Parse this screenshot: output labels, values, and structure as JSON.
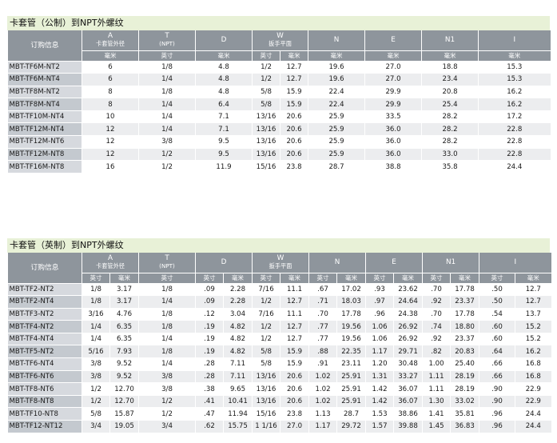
{
  "metric": {
    "title": "卡套管（公制）到NPT外螺纹",
    "header_top": [
      {
        "label": "订购信息",
        "sub": ""
      },
      {
        "label": "A",
        "sub": "卡套管外径"
      },
      {
        "label": "T",
        "sub": "(NPT)"
      },
      {
        "label": "D",
        "sub": ""
      },
      {
        "label": "W",
        "sub": "扳手平面"
      },
      {
        "label": "N",
        "sub": ""
      },
      {
        "label": "E",
        "sub": ""
      },
      {
        "label": "N1",
        "sub": ""
      },
      {
        "label": "I",
        "sub": ""
      }
    ],
    "header_units": [
      "毫米",
      "英寸",
      "毫米",
      "英寸",
      "毫米",
      "毫米",
      "毫米",
      "毫米",
      "毫米"
    ],
    "rows": [
      [
        "MBT-TF6M-NT2",
        "6",
        "1/8",
        "4.8",
        "1/2",
        "12.7",
        "19.6",
        "27.0",
        "18.8",
        "15.3"
      ],
      [
        "MBT-TF6M-NT4",
        "6",
        "1/4",
        "4.8",
        "1/2",
        "12.7",
        "19.6",
        "27.0",
        "23.4",
        "15.3"
      ],
      [
        "MBT-TF8M-NT2",
        "8",
        "1/8",
        "4.8",
        "5/8",
        "15.9",
        "22.4",
        "29.9",
        "20.8",
        "16.2"
      ],
      [
        "MBT-TF8M-NT4",
        "8",
        "1/4",
        "6.4",
        "5/8",
        "15.9",
        "22.4",
        "29.9",
        "25.4",
        "16.2"
      ],
      [
        "MBT-TF10M-NT4",
        "10",
        "1/4",
        "7.1",
        "13/16",
        "20.6",
        "25.9",
        "33.5",
        "28.2",
        "17.2"
      ],
      [
        "MBT-TF12M-NT4",
        "12",
        "1/4",
        "7.1",
        "13/16",
        "20.6",
        "25.9",
        "36.0",
        "28.2",
        "22.8"
      ],
      [
        "MBT-TF12M-NT6",
        "12",
        "3/8",
        "9.5",
        "13/16",
        "20.6",
        "25.9",
        "36.0",
        "28.2",
        "22.8"
      ],
      [
        "MBT-TF12M-NT8",
        "12",
        "1/2",
        "9.5",
        "13/16",
        "20.6",
        "25.9",
        "36.0",
        "33.0",
        "22.8"
      ],
      [
        "MBT-TF16M-NT8",
        "16",
        "1/2",
        "11.9",
        "15/16",
        "23.8",
        "28.7",
        "38.8",
        "35.8",
        "24.4"
      ]
    ]
  },
  "imperial": {
    "title": "卡套管（英制）到NPT外螺纹",
    "header_top": [
      {
        "label": "订购信息",
        "sub": ""
      },
      {
        "label": "A",
        "sub": "卡套管外径"
      },
      {
        "label": "T",
        "sub": "(NPT)"
      },
      {
        "label": "D",
        "sub": ""
      },
      {
        "label": "W",
        "sub": "扳手平面"
      },
      {
        "label": "N",
        "sub": ""
      },
      {
        "label": "E",
        "sub": ""
      },
      {
        "label": "N1",
        "sub": ""
      },
      {
        "label": "I",
        "sub": ""
      }
    ],
    "header_units": [
      "英寸",
      "毫米",
      "英寸",
      "英寸",
      "毫米",
      "英寸",
      "毫米",
      "英寸",
      "毫米",
      "英寸",
      "毫米",
      "英寸",
      "毫米",
      "英寸",
      "毫米"
    ],
    "rows": [
      [
        "MBT-TF2-NT2",
        "1/8",
        "3.17",
        "1/8",
        ".09",
        "2.28",
        "7/16",
        "11.1",
        ".67",
        "17.02",
        ".93",
        "23.62",
        ".70",
        "17.78",
        ".50",
        "12.7"
      ],
      [
        "MBT-TF2-NT4",
        "1/8",
        "3.17",
        "1/4",
        ".09",
        "2.28",
        "1/2",
        "12.7",
        ".71",
        "18.03",
        ".97",
        "24.64",
        ".92",
        "23.37",
        ".50",
        "12.7"
      ],
      [
        "MBT-TF3-NT2",
        "3/16",
        "4.76",
        "1/8",
        ".12",
        "3.04",
        "7/16",
        "11.1",
        ".70",
        "17.78",
        ".96",
        "24.38",
        ".70",
        "17.78",
        ".54",
        "13.7"
      ],
      [
        "MBT-TF4-NT2",
        "1/4",
        "6.35",
        "1/8",
        ".19",
        "4.82",
        "1/2",
        "12.7",
        ".77",
        "19.56",
        "1.06",
        "26.92",
        ".74",
        "18.80",
        ".60",
        "15.2"
      ],
      [
        "MBT-TF4-NT4",
        "1/4",
        "6.35",
        "1/4",
        ".19",
        "4.82",
        "1/2",
        "12.7",
        ".77",
        "19.56",
        "1.06",
        "26.92",
        ".92",
        "23.37",
        ".60",
        "15.2"
      ],
      [
        "MBT-TF5-NT2",
        "5/16",
        "7.93",
        "1/8",
        ".19",
        "4.82",
        "5/8",
        "15.9",
        ".88",
        "22.35",
        "1.17",
        "29.71",
        ".82",
        "20.83",
        ".64",
        "16.2"
      ],
      [
        "MBT-TF6-NT4",
        "3/8",
        "9.52",
        "1/4",
        ".28",
        "7.11",
        "5/8",
        "15.9",
        ".91",
        "23.11",
        "1.20",
        "30.48",
        "1.00",
        "25.40",
        ".66",
        "16.8"
      ],
      [
        "MBT-TF6-NT6",
        "3/8",
        "9.52",
        "3/8",
        ".28",
        "7.11",
        "13/16",
        "20.6",
        "1.02",
        "25.91",
        "1.31",
        "33.27",
        "1.11",
        "28.19",
        ".66",
        "16.8"
      ],
      [
        "MBT-TF8-NT6",
        "1/2",
        "12.70",
        "3/8",
        ".38",
        "9.65",
        "13/16",
        "20.6",
        "1.02",
        "25.91",
        "1.42",
        "36.07",
        "1.11",
        "28.19",
        ".90",
        "22.9"
      ],
      [
        "MBT-TF8-NT8",
        "1/2",
        "12.70",
        "1/2",
        ".41",
        "10.41",
        "13/16",
        "20.6",
        "1.02",
        "25.91",
        "1.42",
        "36.07",
        "1.30",
        "33.02",
        ".90",
        "22.9"
      ],
      [
        "MBT-TF10-NT8",
        "5/8",
        "15.87",
        "1/2",
        ".47",
        "11.94",
        "15/16",
        "23.8",
        "1.13",
        "28.7",
        "1.53",
        "38.86",
        "1.41",
        "35.81",
        ".96",
        "24.4"
      ],
      [
        "MBT-TF12-NT12",
        "3/4",
        "19.05",
        "3/4",
        ".62",
        "15.75",
        "1 1/16",
        "27.0",
        "1.17",
        "29.72",
        "1.57",
        "39.88",
        "1.45",
        "36.83",
        ".96",
        "24.4"
      ]
    ]
  }
}
